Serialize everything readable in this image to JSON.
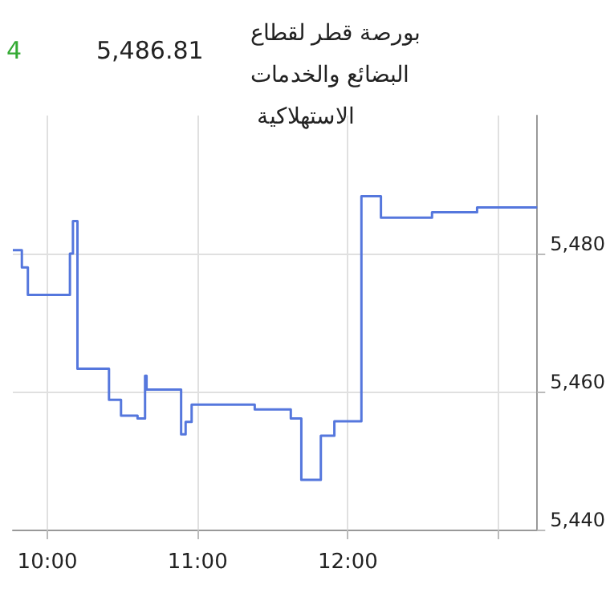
{
  "chart_data": {
    "type": "step",
    "title": "بورصة قطر لقطاع البضائع والخدمات الاستهلاكية",
    "annotations": [
      "4",
      "5,486.81"
    ],
    "x": [
      9.77,
      9.83,
      9.87,
      10.13,
      10.15,
      10.17,
      10.2,
      10.41,
      10.49,
      10.6,
      10.65,
      10.66,
      10.89,
      10.92,
      10.96,
      11.38,
      11.62,
      11.69,
      11.82,
      11.91,
      12.09,
      12.22,
      12.56,
      12.86,
      13.26
    ],
    "series": [
      {
        "color": "#5577dd",
        "values": [
          5480.5,
          5478,
          5474,
          5474,
          5480,
          5484.7,
          5463.3,
          5458.8,
          5456.5,
          5456.1,
          5462.3,
          5460.3,
          5453.8,
          5455.6,
          5458.1,
          5457.4,
          5456.1,
          5447.2,
          5453.6,
          5455.7,
          5488.3,
          5485.2,
          5486,
          5486.7,
          5486.8
        ]
      }
    ],
    "xlim": [
      9.77,
      13.26
    ],
    "xticks": [
      {
        "value": 10,
        "label": "10:00"
      },
      {
        "value": 11,
        "label": "11:00"
      },
      {
        "value": 12,
        "label": "12:00"
      },
      {
        "value": 13,
        "label": null
      }
    ],
    "ylim": [
      5440,
      5500
    ],
    "yticks": [
      {
        "value": 5440,
        "label": "5,440"
      },
      {
        "value": 5460,
        "label": "5,460"
      },
      {
        "value": 5480,
        "label": "5,480"
      }
    ],
    "grid": true
  }
}
